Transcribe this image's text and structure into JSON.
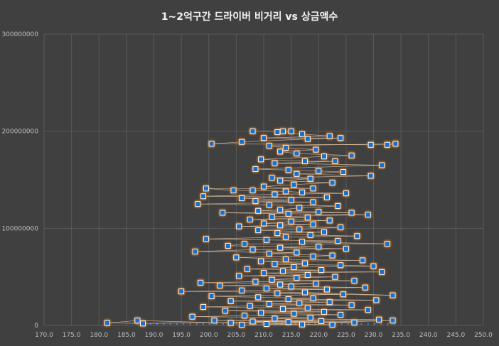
{
  "chart_data": {
    "type": "scatter",
    "title": "1~2억구간 드라이버 비거리 vs 상금액수",
    "xlabel": "",
    "ylabel": "",
    "xlim": [
      170,
      250
    ],
    "ylim": [
      0,
      300000000
    ],
    "x_ticks": [
      "170.0",
      "175.0",
      "180.0",
      "185.0",
      "190.0",
      "195.0",
      "200.0",
      "205.0",
      "210.0",
      "215.0",
      "220.0",
      "225.0",
      "230.0",
      "235.0",
      "240.0",
      "245.0",
      "250.0"
    ],
    "y_ticks": [
      "0",
      "100000000",
      "200000000",
      "300000000"
    ],
    "grid": "on",
    "legend": "none",
    "marker": "square",
    "marker_color": "#1f6fc5",
    "marker_border": "#ffffff",
    "glow_color": "#e07b1a",
    "series": [
      {
        "values": [
          [
            208.0,
            200000000
          ],
          [
            213.5,
            200000000
          ],
          [
            215.0,
            200000000
          ],
          [
            212.5,
            199000000
          ],
          [
            217.0,
            197000000
          ],
          [
            222.0,
            195000000
          ],
          [
            210.0,
            193000000
          ],
          [
            224.0,
            193000000
          ],
          [
            218.0,
            192000000
          ],
          [
            206.0,
            189000000
          ],
          [
            200.5,
            187000000
          ],
          [
            229.5,
            186000000
          ],
          [
            232.5,
            186000000
          ],
          [
            234.0,
            187000000
          ],
          [
            211.0,
            185000000
          ],
          [
            214.0,
            183000000
          ],
          [
            219.5,
            181000000
          ],
          [
            213.0,
            179000000
          ],
          [
            216.0,
            177000000
          ],
          [
            226.0,
            175000000
          ],
          [
            221.0,
            174000000
          ],
          [
            209.5,
            171000000
          ],
          [
            217.5,
            169000000
          ],
          [
            223.0,
            169000000
          ],
          [
            212.0,
            167000000
          ],
          [
            231.5,
            165000000
          ],
          [
            208.5,
            161000000
          ],
          [
            214.5,
            160000000
          ],
          [
            220.0,
            159000000
          ],
          [
            224.5,
            158000000
          ],
          [
            216.0,
            156000000
          ],
          [
            229.5,
            154000000
          ],
          [
            211.5,
            152000000
          ],
          [
            218.5,
            151000000
          ],
          [
            213.0,
            149000000
          ],
          [
            222.5,
            147000000
          ],
          [
            215.5,
            145000000
          ],
          [
            210.0,
            143000000
          ],
          [
            219.0,
            141000000
          ],
          [
            199.5,
            141000000
          ],
          [
            204.5,
            139000000
          ],
          [
            208.0,
            139000000
          ],
          [
            214.0,
            138000000
          ],
          [
            217.0,
            137000000
          ],
          [
            225.0,
            136000000
          ],
          [
            212.0,
            135000000
          ],
          [
            199.0,
            133000000
          ],
          [
            221.5,
            132000000
          ],
          [
            206.0,
            131000000
          ],
          [
            215.0,
            129000000
          ],
          [
            208.5,
            128000000
          ],
          [
            219.0,
            127000000
          ],
          [
            198.0,
            125000000
          ],
          [
            211.0,
            124000000
          ],
          [
            223.5,
            123000000
          ],
          [
            216.5,
            121000000
          ],
          [
            213.0,
            119000000
          ],
          [
            209.0,
            118000000
          ],
          [
            220.0,
            117000000
          ],
          [
            226.0,
            116000000
          ],
          [
            202.5,
            116000000
          ],
          [
            214.5,
            115000000
          ],
          [
            229.0,
            114000000
          ],
          [
            211.5,
            112000000
          ],
          [
            218.0,
            111000000
          ],
          [
            207.5,
            109000000
          ],
          [
            222.0,
            108000000
          ],
          [
            215.0,
            107000000
          ],
          [
            210.0,
            105000000
          ],
          [
            219.0,
            104000000
          ],
          [
            213.0,
            103000000
          ],
          [
            205.5,
            102000000
          ],
          [
            224.0,
            101000000
          ],
          [
            216.5,
            99000000
          ],
          [
            209.0,
            98000000
          ],
          [
            221.0,
            96000000
          ],
          [
            212.5,
            95000000
          ],
          [
            218.5,
            93000000
          ],
          [
            227.0,
            92000000
          ],
          [
            214.0,
            91000000
          ],
          [
            199.5,
            89000000
          ],
          [
            210.5,
            88000000
          ],
          [
            223.5,
            87000000
          ],
          [
            217.0,
            86000000
          ],
          [
            232.5,
            84000000
          ],
          [
            206.5,
            84000000
          ],
          [
            203.5,
            82000000
          ],
          [
            220.0,
            81000000
          ],
          [
            213.0,
            80000000
          ],
          [
            225.0,
            79000000
          ],
          [
            208.0,
            78000000
          ],
          [
            197.5,
            76000000
          ],
          [
            216.0,
            75000000
          ],
          [
            211.0,
            74000000
          ],
          [
            222.5,
            72000000
          ],
          [
            219.0,
            71000000
          ],
          [
            205.0,
            70000000
          ],
          [
            214.0,
            68000000
          ],
          [
            228.0,
            67000000
          ],
          [
            209.5,
            66000000
          ],
          [
            217.5,
            64000000
          ],
          [
            212.0,
            63000000
          ],
          [
            224.0,
            62000000
          ],
          [
            230.0,
            61000000
          ],
          [
            215.5,
            60000000
          ],
          [
            207.0,
            58000000
          ],
          [
            220.5,
            57000000
          ],
          [
            213.5,
            56000000
          ],
          [
            231.5,
            55000000
          ],
          [
            210.0,
            54000000
          ],
          [
            218.0,
            52000000
          ],
          [
            205.5,
            51000000
          ],
          [
            223.0,
            50000000
          ],
          [
            216.0,
            49000000
          ],
          [
            211.5,
            47000000
          ],
          [
            226.5,
            46000000
          ],
          [
            208.5,
            45000000
          ],
          [
            198.5,
            44000000
          ],
          [
            219.5,
            43000000
          ],
          [
            213.0,
            42000000
          ],
          [
            202.0,
            41000000
          ],
          [
            215.0,
            40000000
          ],
          [
            228.5,
            39000000
          ],
          [
            210.5,
            38000000
          ],
          [
            221.5,
            37000000
          ],
          [
            206.0,
            36000000
          ],
          [
            195.0,
            35000000
          ],
          [
            217.5,
            34000000
          ],
          [
            233.5,
            31000000
          ],
          [
            212.5,
            33000000
          ],
          [
            224.5,
            32000000
          ],
          [
            200.5,
            30000000
          ],
          [
            209.0,
            29000000
          ],
          [
            219.0,
            28000000
          ],
          [
            214.5,
            27000000
          ],
          [
            230.5,
            26000000
          ],
          [
            204.0,
            25000000
          ],
          [
            222.0,
            24000000
          ],
          [
            216.5,
            23000000
          ],
          [
            211.0,
            22000000
          ],
          [
            226.0,
            21000000
          ],
          [
            207.5,
            20000000
          ],
          [
            199.0,
            19000000
          ],
          [
            218.0,
            18000000
          ],
          [
            213.5,
            17000000
          ],
          [
            229.0,
            16000000
          ],
          [
            203.0,
            15000000
          ],
          [
            221.0,
            14000000
          ],
          [
            209.5,
            13000000
          ],
          [
            215.5,
            12000000
          ],
          [
            224.0,
            11000000
          ],
          [
            206.5,
            10000000
          ],
          [
            197.0,
            9000000
          ],
          [
            218.5,
            8000000
          ],
          [
            212.0,
            7000000
          ],
          [
            231.0,
            6000000
          ],
          [
            201.0,
            5000000
          ],
          [
            220.5,
            4500000
          ],
          [
            208.0,
            4000000
          ],
          [
            214.5,
            3500000
          ],
          [
            226.5,
            3000000
          ],
          [
            204.0,
            2500000
          ],
          [
            187.0,
            5000000
          ],
          [
            181.5,
            2500000
          ],
          [
            188.0,
            2000000
          ],
          [
            233.5,
            5000000
          ],
          [
            210.5,
            1500000
          ],
          [
            217.0,
            1000000
          ],
          [
            222.5,
            800000
          ],
          [
            206.0,
            600000
          ]
        ]
      }
    ]
  }
}
